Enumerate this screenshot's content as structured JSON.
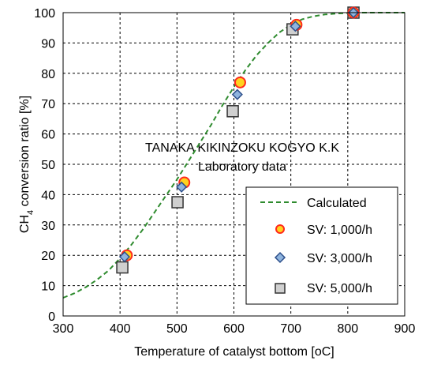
{
  "chart_data": {
    "type": "scatter",
    "xlabel": "Temperature of catalyst bottom [oC]",
    "ylabel_prefix": "CH",
    "ylabel_sub": "4",
    "ylabel_suffix": " conversion ratio [%]",
    "xlim": [
      300,
      900
    ],
    "ylim": [
      0,
      100
    ],
    "xticks": [
      300,
      400,
      500,
      600,
      700,
      800,
      900
    ],
    "yticks": [
      0,
      10,
      20,
      30,
      40,
      50,
      60,
      70,
      80,
      90,
      100
    ],
    "grid": "dashed",
    "legend_position": "bottom-right",
    "watermark": [
      "TANAKA KIKINZOKU KOGYO K.K",
      "Laboratory data"
    ],
    "series": [
      {
        "name": "Calculated",
        "kind": "line",
        "color": "#2e8b2e",
        "x": [
          300,
          320,
          340,
          360,
          380,
          400,
          420,
          440,
          460,
          480,
          500,
          520,
          540,
          560,
          580,
          600,
          620,
          640,
          660,
          680,
          700,
          720,
          740,
          760,
          780,
          800,
          820,
          840,
          860,
          880,
          900
        ],
        "y": [
          6,
          7.5,
          9.5,
          12,
          15,
          19,
          23.5,
          28.5,
          34,
          39.5,
          45,
          51,
          57,
          63,
          69.5,
          75.5,
          81,
          86,
          90,
          93.5,
          96,
          97.8,
          98.8,
          99.4,
          99.7,
          99.9,
          100,
          100,
          100,
          100,
          100
        ]
      },
      {
        "name": "SV: 1,000/h",
        "kind": "marker",
        "marker": "circle",
        "fill": "#ffd21f",
        "stroke": "#ff2a1a",
        "x": [
          412,
          513,
          611,
          710,
          810
        ],
        "y": [
          20,
          44,
          77,
          96,
          100
        ]
      },
      {
        "name": "SV: 3,000/h",
        "kind": "marker",
        "marker": "diamond",
        "fill": "#8fb4de",
        "stroke": "#2d4f8a",
        "x": [
          408,
          508,
          606,
          708,
          810
        ],
        "y": [
          19.5,
          42.5,
          73,
          95.5,
          100
        ]
      },
      {
        "name": "SV: 5,000/h",
        "kind": "marker",
        "marker": "square",
        "fill": "#d0d0d0",
        "stroke": "#333333",
        "x": [
          404,
          501,
          598,
          703,
          810
        ],
        "y": [
          16,
          37.5,
          67.5,
          94.5,
          100
        ]
      }
    ]
  }
}
